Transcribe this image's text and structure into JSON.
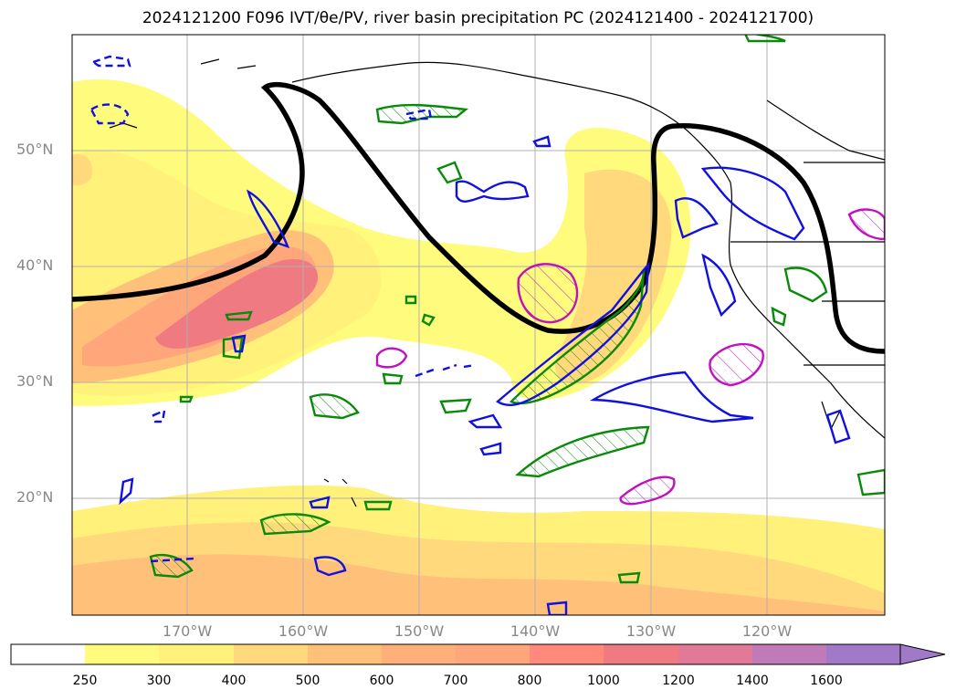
{
  "title": "2024121200 F096 IVT/θe/PV, river basin precipitation PC (2024121400 - 2024121700)",
  "map": {
    "lat_labels": [
      "50°N",
      "40°N",
      "30°N",
      "20°N"
    ],
    "lon_labels": [
      "170°W",
      "160°W",
      "150°W",
      "140°W",
      "130°W",
      "120°W"
    ],
    "grid": true,
    "colors": {
      "ivt_fill": [
        "#ffffff",
        "#fffb7c",
        "#fff17a",
        "#ffd97c",
        "#ffc07a",
        "#ffa67a",
        "#ff8a7c",
        "#f07a82",
        "#e07a98",
        "#c07ab8",
        "#a07ac8"
      ],
      "pv_contour": "#000000",
      "positive_pc": "#0a8a0a",
      "negative_pc": "#1010e0",
      "theta_e": "#c010c0",
      "coastline": "#000000"
    }
  },
  "colorbar": {
    "ticks": [
      "250",
      "300",
      "400",
      "500",
      "600",
      "700",
      "800",
      "1000",
      "1200",
      "1400",
      "1600"
    ],
    "extend": "max"
  }
}
